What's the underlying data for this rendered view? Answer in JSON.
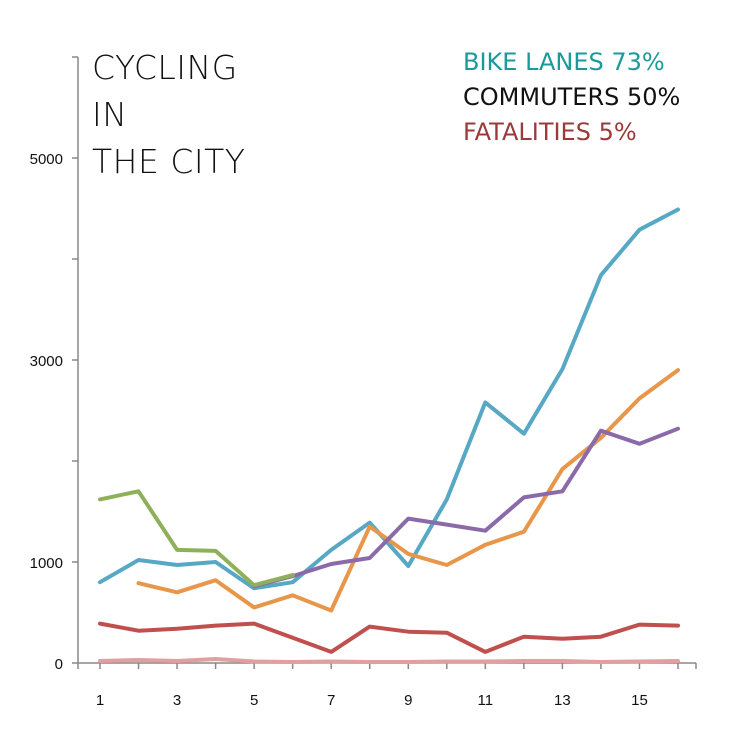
{
  "chart_data": {
    "type": "line",
    "title_lines": [
      "CYCLING",
      "IN",
      "THE CITY"
    ],
    "legend": [
      {
        "text": "BIKE LANES 73%",
        "color": "#1a9a9a"
      },
      {
        "text": "COMMUTERS 50%",
        "color": "#111111"
      },
      {
        "text": "FATALITIES 5%",
        "color": "#9b3a3a"
      }
    ],
    "xlabel": "",
    "ylabel": "",
    "xlim": [
      1,
      16
    ],
    "ylim": [
      0,
      6000
    ],
    "x_ticks": [
      1,
      3,
      5,
      7,
      9,
      11,
      13,
      15
    ],
    "y_ticks": [
      0,
      1000,
      3000,
      5000
    ],
    "y_ticks_unlabeled": [
      2000,
      4000,
      6000
    ],
    "grid": false,
    "series": [
      {
        "color": "#57a8c4",
        "x": [
          1,
          2,
          3,
          4,
          5,
          6,
          7,
          8,
          9,
          10,
          11,
          12,
          13,
          14,
          15,
          16
        ],
        "values": [
          800,
          1020,
          970,
          1000,
          740,
          800,
          1120,
          1390,
          960,
          1620,
          2580,
          2270,
          2910,
          3840,
          4290,
          4490
        ]
      },
      {
        "color": "#e8974a",
        "x": [
          2,
          3,
          4,
          5,
          6,
          7,
          8,
          9,
          10,
          11,
          12,
          13,
          14,
          15,
          16
        ],
        "values": [
          790,
          700,
          820,
          550,
          670,
          520,
          1350,
          1080,
          970,
          1170,
          1300,
          1920,
          2230,
          2620,
          2900
        ]
      },
      {
        "color": "#8a6aa8",
        "x": [
          5,
          6,
          7,
          8,
          9,
          10,
          11,
          12,
          13,
          14,
          15,
          16
        ],
        "values": [
          760,
          860,
          980,
          1040,
          1430,
          1370,
          1310,
          1640,
          1700,
          2300,
          2170,
          2320
        ]
      },
      {
        "color": "#8fb05b",
        "x": [
          1,
          2,
          3,
          4,
          5,
          6
        ],
        "values": [
          1620,
          1700,
          1120,
          1110,
          770,
          870
        ]
      },
      {
        "color": "#c0504d",
        "x": [
          1,
          2,
          3,
          4,
          5,
          6,
          7,
          8,
          9,
          10,
          11,
          12,
          13,
          14,
          15,
          16
        ],
        "values": [
          390,
          320,
          340,
          370,
          390,
          250,
          110,
          360,
          310,
          300,
          110,
          260,
          240,
          260,
          380,
          370
        ]
      },
      {
        "color": "#e0a0a0",
        "x": [
          1,
          2,
          3,
          4,
          5,
          6,
          7,
          8,
          9,
          10,
          11,
          12,
          13,
          14,
          15,
          16
        ],
        "values": [
          20,
          30,
          20,
          40,
          15,
          10,
          15,
          10,
          10,
          15,
          15,
          20,
          20,
          10,
          15,
          20
        ]
      }
    ]
  }
}
